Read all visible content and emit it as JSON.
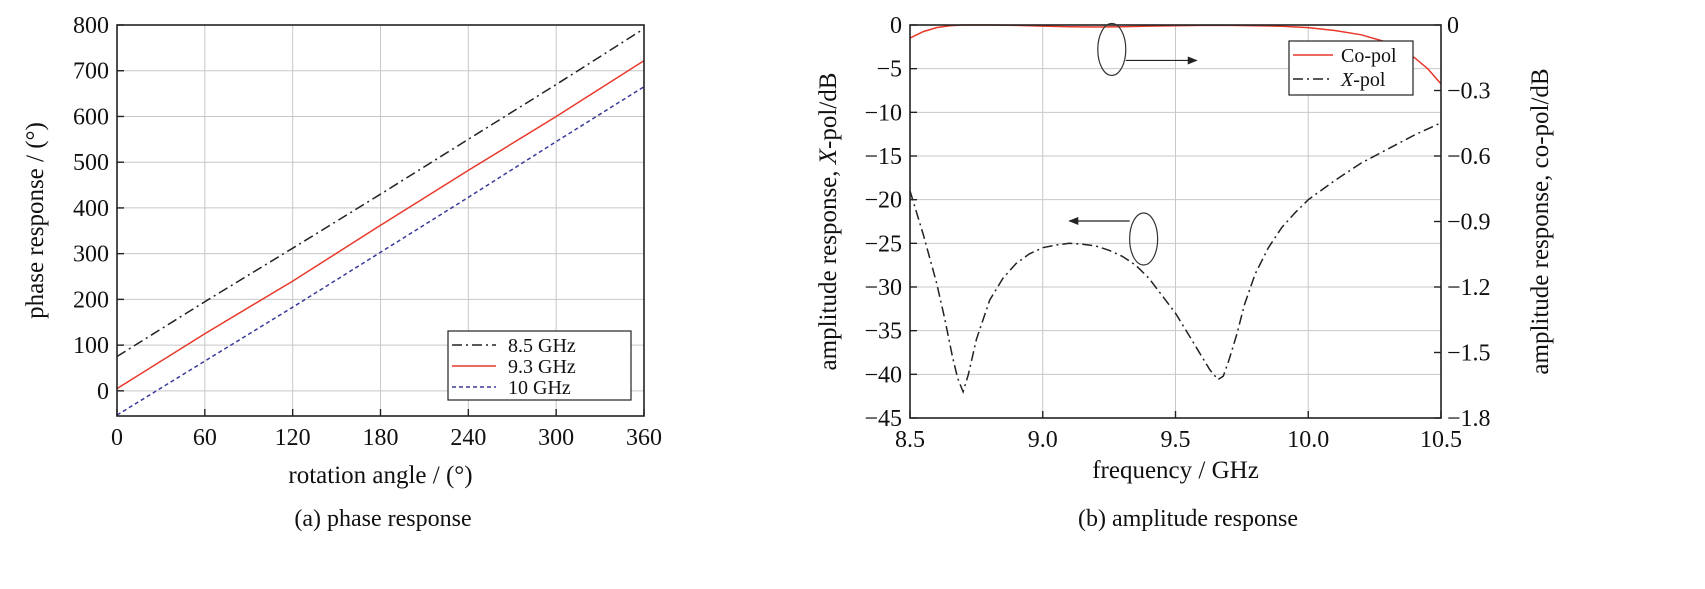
{
  "chart_data": [
    {
      "type": "line",
      "caption": "(a) phase response",
      "xlabel": "rotation angle / (°)",
      "ylabel": "phase response / (°)",
      "xlim": [
        0,
        360
      ],
      "ylim": [
        -55,
        800
      ],
      "xticks": [
        0,
        60,
        120,
        180,
        240,
        300,
        360
      ],
      "yticks": [
        0,
        100,
        200,
        300,
        400,
        500,
        600,
        700,
        800
      ],
      "grid": true,
      "legend_position": "bottom-right",
      "series": [
        {
          "name": "8.5 GHz",
          "color": "#222222",
          "style": "dashdot",
          "x": [
            0,
            60,
            120,
            180,
            240,
            300,
            360
          ],
          "y": [
            75,
            195,
            312,
            430,
            550,
            670,
            792
          ]
        },
        {
          "name": "9.3 GHz",
          "color": "#e8392b",
          "style": "solid",
          "x": [
            0,
            60,
            120,
            180,
            240,
            300,
            360
          ],
          "y": [
            5,
            125,
            240,
            362,
            482,
            600,
            722
          ]
        },
        {
          "name": "10  GHz",
          "color": "#3a3a9a",
          "style": "dotted",
          "x": [
            0,
            60,
            120,
            180,
            240,
            300,
            360
          ],
          "y": [
            -53,
            65,
            183,
            303,
            423,
            545,
            665
          ]
        }
      ]
    },
    {
      "type": "line",
      "caption": "(b) amplitude response",
      "xlabel": "frequency / GHz",
      "ylabel_left_parts": [
        "amplitude response, ",
        "X",
        "-pol/dB"
      ],
      "ylabel_right": "amplitude response, co-pol/dB",
      "xlim": [
        8.5,
        10.5
      ],
      "ylim_left": [
        -45,
        0
      ],
      "ylim_right": [
        -1.8,
        0
      ],
      "xticks": [
        "8.5",
        "9.0",
        "9.5",
        "10.0",
        "10.5"
      ],
      "yticks_left": [
        "0",
        "−5",
        "−10",
        "−15",
        "−20",
        "−25",
        "−30",
        "−35",
        "−40",
        "−45"
      ],
      "yticks_right": [
        "0",
        "−0.3",
        "−0.6",
        "−0.9",
        "−1.2",
        "−1.5",
        "−1.8"
      ],
      "grid": true,
      "legend_position": "top-right",
      "series": [
        {
          "name": "Co-pol",
          "axis": "right",
          "color": "#e8392b",
          "style": "solid",
          "x": [
            8.5,
            8.55,
            8.6,
            8.65,
            8.7,
            8.8,
            8.9,
            9.0,
            9.1,
            9.2,
            9.3,
            9.4,
            9.5,
            9.6,
            9.7,
            9.8,
            9.9,
            10.0,
            10.1,
            10.2,
            10.3,
            10.4,
            10.45,
            10.5
          ],
          "y": [
            -0.06,
            -0.03,
            -0.012,
            -0.003,
            0.0,
            0.0,
            -0.002,
            -0.005,
            -0.008,
            -0.009,
            -0.008,
            -0.005,
            -0.003,
            -0.002,
            -0.002,
            -0.003,
            -0.006,
            -0.012,
            -0.025,
            -0.045,
            -0.08,
            -0.15,
            -0.2,
            -0.27
          ]
        },
        {
          "name": "X-pol",
          "name_parts": [
            "X",
            "-pol"
          ],
          "axis": "left",
          "color": "#222222",
          "style": "dashdot",
          "x": [
            8.5,
            8.55,
            8.6,
            8.63,
            8.66,
            8.68,
            8.7,
            8.72,
            8.75,
            8.8,
            8.85,
            8.9,
            8.95,
            9.0,
            9.05,
            9.1,
            9.15,
            9.2,
            9.25,
            9.3,
            9.35,
            9.4,
            9.45,
            9.5,
            9.55,
            9.6,
            9.63,
            9.66,
            9.68,
            9.7,
            9.73,
            9.76,
            9.8,
            9.85,
            9.9,
            9.95,
            10.0,
            10.1,
            10.2,
            10.3,
            10.4,
            10.5
          ],
          "y": [
            -19,
            -24,
            -29.5,
            -33.5,
            -38,
            -40.5,
            -42,
            -40,
            -36,
            -31.5,
            -29,
            -27.3,
            -26.2,
            -25.5,
            -25.2,
            -25.0,
            -25.1,
            -25.3,
            -25.8,
            -26.5,
            -27.5,
            -29,
            -31,
            -33,
            -35.5,
            -38,
            -39.5,
            -40.6,
            -40.2,
            -38.5,
            -35.5,
            -32,
            -28.5,
            -25.5,
            -23.2,
            -21.5,
            -20,
            -17.8,
            -15.8,
            -14.2,
            -12.6,
            -11.2
          ]
        }
      ],
      "annotations": [
        {
          "type": "ellipse-arrow",
          "target": "right-axis",
          "cx": 9.26,
          "cy": -2.8,
          "arrow_to_x": 9.58
        },
        {
          "type": "ellipse-arrow",
          "target": "left-axis",
          "cx": 9.38,
          "cy": -24.5,
          "arrow_to_x": 9.1
        }
      ]
    }
  ]
}
